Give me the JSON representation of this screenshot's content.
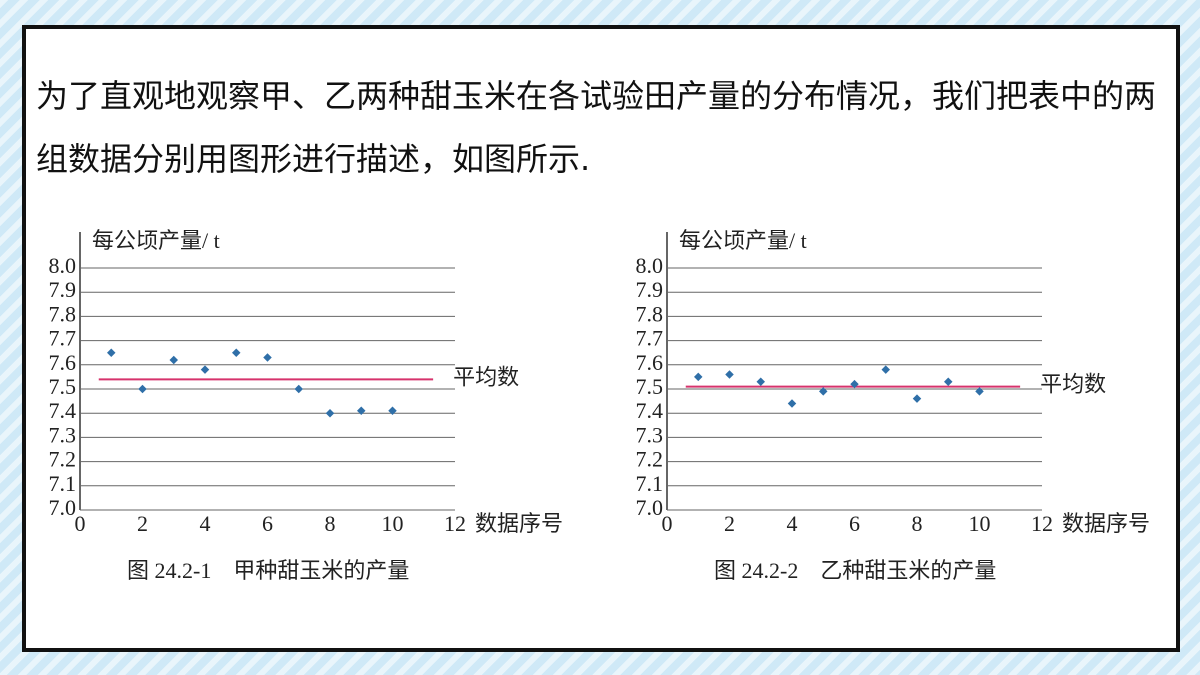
{
  "text": "为了直观地观察甲、乙两种甜玉米在各试验田产量的分布情况，我们把表中的两组数据分别用图形进行描述，如图所示.",
  "chart_data": [
    {
      "type": "scatter",
      "y_label": "每公顷产量/ t",
      "x_label": "数据序号",
      "caption": "图 24.2-1　甲种甜玉米的产量",
      "x": [
        1,
        2,
        3,
        4,
        5,
        6,
        7,
        8,
        9,
        10
      ],
      "values": [
        7.65,
        7.5,
        7.62,
        7.58,
        7.65,
        7.63,
        7.5,
        7.4,
        7.41,
        7.41
      ],
      "color": "#2f6fa8",
      "mean_line": {
        "label": "平均数",
        "value": 7.54,
        "color": "#d6336c"
      },
      "xlim": [
        0,
        12
      ],
      "xticks": [
        0,
        2,
        4,
        6,
        8,
        10,
        12
      ],
      "ylim": [
        7.0,
        8.0
      ],
      "yticks": [
        {
          "value": 7.0,
          "label": "7.0"
        },
        7.1,
        7.2,
        7.3,
        7.4,
        7.5,
        7.6,
        7.7,
        7.8,
        7.9,
        {
          "value": 8.0,
          "label": "8.0"
        }
      ],
      "grid": true
    },
    {
      "type": "scatter",
      "y_label": "每公顷产量/ t",
      "x_label": "数据序号",
      "caption": "图 24.2-2　乙种甜玉米的产量",
      "x": [
        1,
        2,
        3,
        4,
        5,
        6,
        7,
        8,
        9,
        10
      ],
      "values": [
        7.55,
        7.56,
        7.53,
        7.44,
        7.49,
        7.52,
        7.58,
        7.46,
        7.53,
        7.49
      ],
      "color": "#2f6fa8",
      "mean_line": {
        "label": "平均数",
        "value": 7.51,
        "color": "#d6336c"
      },
      "xlim": [
        0,
        12
      ],
      "xticks": [
        0,
        2,
        4,
        6,
        8,
        10,
        12
      ],
      "ylim": [
        7.0,
        8.0
      ],
      "yticks": [
        {
          "value": 7.0,
          "label": "7.0"
        },
        7.1,
        7.2,
        7.3,
        7.4,
        7.5,
        7.6,
        7.7,
        7.8,
        7.9,
        {
          "value": 8.0,
          "label": "8.0"
        }
      ],
      "grid": true
    }
  ]
}
